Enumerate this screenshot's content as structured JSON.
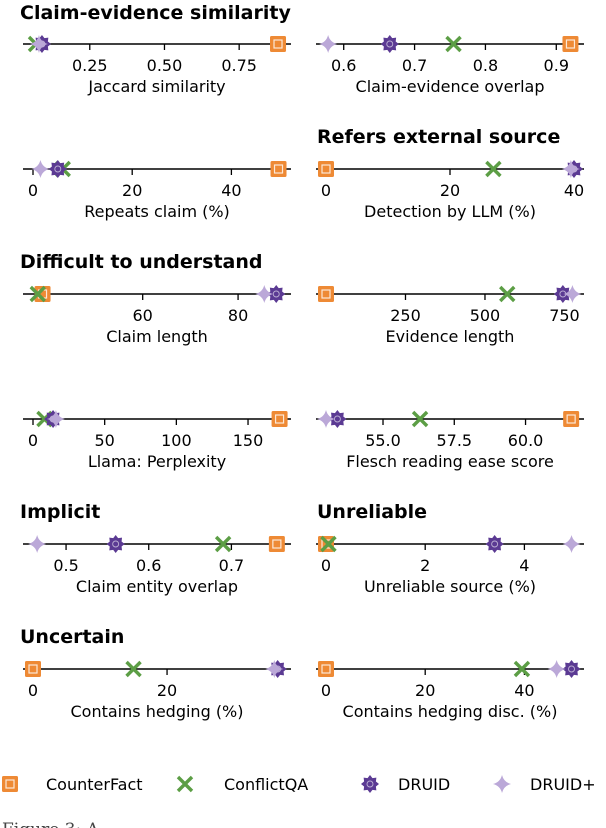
{
  "colors": {
    "CounterFact": "#ee8a35",
    "ConflictQA": "#5c9e45",
    "DRUID": "#5b3a93",
    "DRUID+": "#bba8d8"
  },
  "legend": [
    "CounterFact",
    "ConflictQA",
    "DRUID",
    "DRUID+"
  ],
  "sections": [
    {
      "title": "Claim-evidence similarity"
    },
    {
      "title": "Refers external source"
    },
    {
      "title": "Difficult to understand"
    },
    {
      "title": "Implicit"
    },
    {
      "title": "Unreliable"
    },
    {
      "title": "Uncertain"
    }
  ],
  "caption_fragment": "Figure 3: A ... ",
  "chart_data": [
    {
      "type": "scatter",
      "xlabel": "Jaccard similarity",
      "xlim": [
        0.06,
        0.89
      ],
      "ticks": [
        0.25,
        0.5,
        0.75
      ],
      "tick_labels": [
        "0.25",
        "0.50",
        "0.75"
      ],
      "values": {
        "CounterFact": 0.88,
        "ConflictQA": 0.07,
        "DRUID": 0.09,
        "DRUID+": 0.08
      }
    },
    {
      "type": "scatter",
      "xlabel": "Claim-evidence overlap",
      "xlim": [
        0.575,
        0.925
      ],
      "ticks": [
        0.6,
        0.7,
        0.8,
        0.9
      ],
      "tick_labels": [
        "0.6",
        "0.7",
        "0.8",
        "0.9"
      ],
      "values": {
        "CounterFact": 0.92,
        "ConflictQA": 0.755,
        "DRUID": 0.665,
        "DRUID+": 0.578
      }
    },
    {
      "type": "scatter",
      "xlabel": "Repeats claim (%)",
      "xlim": [
        0,
        50
      ],
      "ticks": [
        0,
        20,
        40
      ],
      "tick_labels": [
        "0",
        "20",
        "40"
      ],
      "values": {
        "CounterFact": 49.5,
        "ConflictQA": 6.0,
        "DRUID": 5.0,
        "DRUID+": 1.5
      }
    },
    {
      "type": "scatter",
      "xlabel": "Detection by LLM (%)",
      "xlim": [
        0,
        40
      ],
      "ticks": [
        0,
        20,
        40
      ],
      "tick_labels": [
        "0",
        "20",
        "40"
      ],
      "values": {
        "CounterFact": 0.0,
        "ConflictQA": 27.0,
        "DRUID": 40.0,
        "DRUID+": 39.5
      }
    },
    {
      "type": "scatter",
      "xlabel": "Claim length",
      "xlim": [
        37,
        89
      ],
      "ticks": [
        60,
        80
      ],
      "tick_labels": [
        "60",
        "80"
      ],
      "values": {
        "CounterFact": 39.0,
        "ConflictQA": 38.0,
        "DRUID": 88.0,
        "DRUID+": 85.5
      }
    },
    {
      "type": "scatter",
      "xlabel": "Evidence length",
      "xlim": [
        0,
        780
      ],
      "ticks": [
        250,
        500,
        750
      ],
      "tick_labels": [
        "250",
        "500",
        "750"
      ],
      "values": {
        "CounterFact": 0,
        "ConflictQA": 570,
        "DRUID": 745,
        "DRUID+": 775
      }
    },
    {
      "type": "scatter",
      "xlabel": "Llama: Perplexity",
      "xlim": [
        0,
        173
      ],
      "ticks": [
        0,
        50,
        100,
        150
      ],
      "tick_labels": [
        "0",
        "50",
        "100",
        "150"
      ],
      "values": {
        "CounterFact": 172,
        "ConflictQA": 8,
        "DRUID": 14,
        "DRUID+": 16
      }
    },
    {
      "type": "scatter",
      "xlabel": "Flesch reading ease score",
      "xlim": [
        53.0,
        61.7
      ],
      "ticks": [
        55.0,
        57.5,
        60.0
      ],
      "tick_labels": [
        "55.0",
        "57.5",
        "60.0"
      ],
      "values": {
        "CounterFact": 61.6,
        "ConflictQA": 56.3,
        "DRUID": 53.4,
        "DRUID+": 53.0
      }
    },
    {
      "type": "scatter",
      "xlabel": "Claim entity overlap",
      "xlim": [
        0.46,
        0.76
      ],
      "ticks": [
        0.5,
        0.6,
        0.7
      ],
      "tick_labels": [
        "0.5",
        "0.6",
        "0.7"
      ],
      "values": {
        "CounterFact": 0.755,
        "ConflictQA": 0.69,
        "DRUID": 0.56,
        "DRUID+": 0.465
      }
    },
    {
      "type": "scatter",
      "xlabel": "Unreliable source (%)",
      "xlim": [
        0,
        5
      ],
      "ticks": [
        0,
        2,
        4
      ],
      "tick_labels": [
        "0",
        "2",
        "4"
      ],
      "values": {
        "CounterFact": 0.0,
        "ConflictQA": 0.05,
        "DRUID": 3.4,
        "DRUID+": 4.95
      }
    },
    {
      "type": "scatter",
      "xlabel": "Contains hedging (%)",
      "xlim": [
        0,
        37
      ],
      "ticks": [
        0,
        20
      ],
      "tick_labels": [
        "0",
        "20"
      ],
      "values": {
        "CounterFact": 0.0,
        "ConflictQA": 15.0,
        "DRUID": 36.5,
        "DRUID+": 36.0
      }
    },
    {
      "type": "scatter",
      "xlabel": "Contains hedging disc. (%)",
      "xlim": [
        0,
        50
      ],
      "ticks": [
        0,
        20,
        40
      ],
      "tick_labels": [
        "0",
        "20",
        "40"
      ],
      "values": {
        "CounterFact": 0.0,
        "ConflictQA": 39.5,
        "DRUID": 49.5,
        "DRUID+": 46.5
      }
    }
  ]
}
